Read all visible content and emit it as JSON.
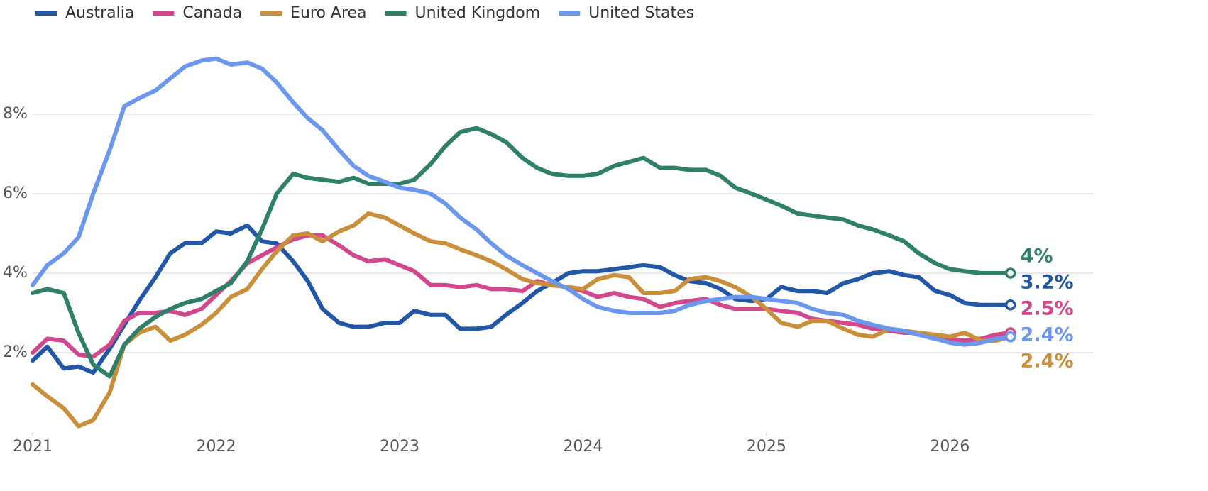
{
  "chart_data": {
    "type": "line",
    "x": [
      2021,
      2021.08,
      2021.17,
      2021.25,
      2021.33,
      2021.42,
      2021.5,
      2021.58,
      2021.67,
      2021.75,
      2021.83,
      2021.92,
      2022,
      2022.08,
      2022.17,
      2022.25,
      2022.33,
      2022.42,
      2022.5,
      2022.58,
      2022.67,
      2022.75,
      2022.83,
      2022.92,
      2023,
      2023.08,
      2023.17,
      2023.25,
      2023.33,
      2023.42,
      2023.5,
      2023.58,
      2023.67,
      2023.75,
      2023.83,
      2023.92,
      2024,
      2024.08,
      2024.17,
      2024.25,
      2024.33,
      2024.42,
      2024.5,
      2024.58,
      2024.67,
      2024.75,
      2024.83,
      2024.92,
      2025,
      2025.08,
      2025.17,
      2025.25,
      2025.33,
      2025.42,
      2025.5,
      2025.58,
      2025.67,
      2025.75,
      2025.83,
      2025.92,
      2026,
      2026.08,
      2026.17,
      2026.25,
      2026.33
    ],
    "xlim": [
      2021,
      2026.78
    ],
    "xticks": [
      2021,
      2022,
      2023,
      2024,
      2025,
      2026
    ],
    "ylim": [
      0,
      10
    ],
    "yticks": [
      {
        "value": 2,
        "label": "2%"
      },
      {
        "value": 4,
        "label": "4%"
      },
      {
        "value": 6,
        "label": "6%"
      },
      {
        "value": 8,
        "label": "8%"
      }
    ],
    "grid": true,
    "legend": "top-left",
    "series": [
      {
        "name": "Australia",
        "color": "#2257a8",
        "end_label": "3.2%",
        "values": [
          1.8,
          2.15,
          1.6,
          1.65,
          1.5,
          2.1,
          2.7,
          3.3,
          3.9,
          4.5,
          4.75,
          4.75,
          5.05,
          5.0,
          5.2,
          4.8,
          4.75,
          4.3,
          3.8,
          3.1,
          2.75,
          2.65,
          2.65,
          2.75,
          2.75,
          3.05,
          2.95,
          2.95,
          2.6,
          2.6,
          2.65,
          2.95,
          3.25,
          3.55,
          3.75,
          4.0,
          4.05,
          4.05,
          4.1,
          4.15,
          4.2,
          4.15,
          3.95,
          3.8,
          3.75,
          3.6,
          3.35,
          3.3,
          3.35,
          3.65,
          3.55,
          3.55,
          3.5,
          3.75,
          3.85,
          4.0,
          4.05,
          3.95,
          3.9,
          3.55,
          3.45,
          3.25,
          3.2,
          3.2,
          3.2
        ]
      },
      {
        "name": "Canada",
        "color": "#d2488e",
        "end_label": "2.5%",
        "values": [
          2.0,
          2.35,
          2.3,
          1.95,
          1.9,
          2.2,
          2.8,
          3.0,
          3.0,
          3.05,
          2.95,
          3.1,
          3.45,
          3.8,
          4.25,
          4.45,
          4.65,
          4.85,
          4.95,
          4.95,
          4.7,
          4.45,
          4.3,
          4.35,
          4.2,
          4.05,
          3.7,
          3.7,
          3.65,
          3.7,
          3.6,
          3.6,
          3.55,
          3.8,
          3.7,
          3.65,
          3.55,
          3.4,
          3.5,
          3.4,
          3.35,
          3.15,
          3.25,
          3.3,
          3.35,
          3.2,
          3.1,
          3.1,
          3.1,
          3.05,
          3.0,
          2.85,
          2.8,
          2.75,
          2.7,
          2.6,
          2.55,
          2.5,
          2.5,
          2.4,
          2.35,
          2.3,
          2.35,
          2.45,
          2.5
        ]
      },
      {
        "name": "Euro Area",
        "color": "#c98f3a",
        "end_label": "2.4%",
        "values": [
          1.2,
          0.9,
          0.6,
          0.15,
          0.3,
          1.0,
          2.2,
          2.5,
          2.65,
          2.3,
          2.45,
          2.7,
          3.0,
          3.4,
          3.6,
          4.1,
          4.55,
          4.95,
          5.0,
          4.8,
          5.05,
          5.2,
          5.5,
          5.4,
          5.2,
          5.0,
          4.8,
          4.75,
          4.6,
          4.45,
          4.3,
          4.1,
          3.85,
          3.75,
          3.7,
          3.65,
          3.6,
          3.85,
          3.95,
          3.9,
          3.5,
          3.5,
          3.55,
          3.85,
          3.9,
          3.8,
          3.65,
          3.4,
          3.1,
          2.75,
          2.65,
          2.8,
          2.8,
          2.6,
          2.45,
          2.4,
          2.6,
          2.55,
          2.5,
          2.45,
          2.4,
          2.5,
          2.3,
          2.3,
          2.4
        ]
      },
      {
        "name": "United Kingdom",
        "color": "#2e8069",
        "end_label": "4%",
        "values": [
          3.5,
          3.6,
          3.5,
          2.5,
          1.7,
          1.4,
          2.2,
          2.6,
          2.9,
          3.1,
          3.25,
          3.35,
          3.55,
          3.75,
          4.3,
          5.1,
          6.0,
          6.5,
          6.4,
          6.35,
          6.3,
          6.4,
          6.25,
          6.25,
          6.25,
          6.35,
          6.75,
          7.2,
          7.55,
          7.65,
          7.5,
          7.3,
          6.9,
          6.65,
          6.5,
          6.45,
          6.45,
          6.5,
          6.7,
          6.8,
          6.9,
          6.65,
          6.65,
          6.6,
          6.6,
          6.45,
          6.15,
          6.0,
          5.85,
          5.7,
          5.5,
          5.45,
          5.4,
          5.35,
          5.2,
          5.1,
          4.95,
          4.8,
          4.5,
          4.25,
          4.1,
          4.05,
          4.0,
          4.0,
          4.0
        ]
      },
      {
        "name": "United States",
        "color": "#6b98ee",
        "end_label": "2.4%",
        "values": [
          3.7,
          4.2,
          4.5,
          4.9,
          6.0,
          7.1,
          8.2,
          8.4,
          8.6,
          8.9,
          9.2,
          9.35,
          9.4,
          9.25,
          9.3,
          9.15,
          8.8,
          8.3,
          7.9,
          7.6,
          7.1,
          6.7,
          6.45,
          6.3,
          6.15,
          6.1,
          6.0,
          5.75,
          5.4,
          5.1,
          4.75,
          4.45,
          4.2,
          4.0,
          3.8,
          3.6,
          3.35,
          3.15,
          3.05,
          3.0,
          3.0,
          3.0,
          3.05,
          3.2,
          3.3,
          3.35,
          3.4,
          3.4,
          3.35,
          3.3,
          3.25,
          3.1,
          3.0,
          2.95,
          2.8,
          2.7,
          2.6,
          2.55,
          2.45,
          2.35,
          2.25,
          2.2,
          2.25,
          2.35,
          2.4
        ]
      }
    ]
  }
}
